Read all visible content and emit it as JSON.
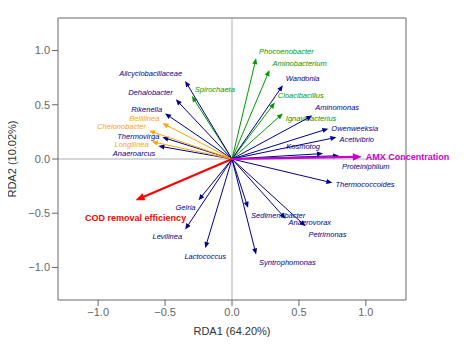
{
  "chart_data": {
    "type": "biplot",
    "xlabel": "RDA1 (64.20%)",
    "ylabel": "RDA2 (10.02%)",
    "xlim": [
      -1.3,
      1.3
    ],
    "ylim": [
      -1.3,
      1.3
    ],
    "xticks": [
      {
        "value": -1.0,
        "label": "−1.0"
      },
      {
        "value": -0.5,
        "label": "−0.5"
      },
      {
        "value": 0.0,
        "label": "0.0"
      },
      0.5,
      {
        "value": 1.0,
        "label": "1.0"
      }
    ],
    "yticks": [
      {
        "value": -1.0,
        "label": "−1.0"
      },
      {
        "value": -0.5,
        "label": "−0.5"
      },
      {
        "value": 0.0,
        "label": "0.0"
      },
      0.5,
      {
        "value": 1.0,
        "label": "1.0"
      }
    ],
    "env_arrows": [
      {
        "name": "AMX Concentration",
        "x": 0.97,
        "y": 0.02,
        "color": "#CC00CC"
      },
      {
        "name": "COD removal efficiency",
        "x": -0.72,
        "y": -0.38,
        "color": "#FF0000"
      }
    ],
    "species_arrows": [
      {
        "name": "Phocoenobacter",
        "x": 0.18,
        "y": 0.93,
        "color": "#009900"
      },
      {
        "name": "Aminobacterium",
        "x": 0.28,
        "y": 0.82,
        "color": "#009900"
      },
      {
        "name": "Spirochaeta",
        "x": -0.3,
        "y": 0.58,
        "color": "#009900"
      },
      {
        "name": "Cloacibacillus",
        "x": 0.32,
        "y": 0.52,
        "color": "#009900"
      },
      {
        "name": "Ignavibacterius",
        "x": 0.38,
        "y": 0.42,
        "color": "#009900"
      },
      {
        "name": "Wandonia",
        "x": 0.38,
        "y": 0.68,
        "color": "#00008B"
      },
      {
        "name": "Alicyclobacillaceae",
        "x": -0.35,
        "y": 0.72,
        "color": "#00008B"
      },
      {
        "name": "Dehalobacter",
        "x": -0.42,
        "y": 0.55,
        "color": "#00008B"
      },
      {
        "name": "Rikenella",
        "x": -0.5,
        "y": 0.42,
        "color": "#00008B"
      },
      {
        "name": "Thermovirga",
        "x": -0.52,
        "y": 0.2,
        "color": "#00008B"
      },
      {
        "name": "Anaeroarcus",
        "x": -0.55,
        "y": 0.12,
        "color": "#00008B"
      },
      {
        "name": "Aminomonas",
        "x": 0.6,
        "y": 0.4,
        "color": "#00008B"
      },
      {
        "name": "Owenweeksia",
        "x": 0.72,
        "y": 0.28,
        "color": "#00008B"
      },
      {
        "name": "Acetivibrio",
        "x": 0.78,
        "y": 0.2,
        "color": "#00008B"
      },
      {
        "name": "Kosmotog",
        "x": 0.68,
        "y": 0.05,
        "color": "#00008B"
      },
      {
        "name": "Proteiniphilum",
        "x": 0.8,
        "y": 0.03,
        "color": "#00008B"
      },
      {
        "name": "Thermococcoides",
        "x": 0.75,
        "y": -0.22,
        "color": "#00008B"
      },
      {
        "name": "Gelria",
        "x": -0.25,
        "y": -0.38,
        "color": "#00008B"
      },
      {
        "name": "Sedimentibacter",
        "x": 0.12,
        "y": -0.45,
        "color": "#00008B"
      },
      {
        "name": "Anaerovorax",
        "x": 0.4,
        "y": -0.55,
        "color": "#00008B"
      },
      {
        "name": "Petrimonas",
        "x": 0.55,
        "y": -0.62,
        "color": "#00008B"
      },
      {
        "name": "Levilinea",
        "x": -0.35,
        "y": -0.65,
        "color": "#00008B"
      },
      {
        "name": "Lactococcus",
        "x": -0.2,
        "y": -0.82,
        "color": "#00008B"
      },
      {
        "name": "Syntrophomonas",
        "x": 0.18,
        "y": -0.88,
        "color": "#00008B"
      },
      {
        "name": "Bellilinea",
        "x": -0.52,
        "y": 0.33,
        "color": "#FFA500"
      },
      {
        "name": "Chelonobacter",
        "x": -0.62,
        "y": 0.26,
        "color": "#FFA500"
      },
      {
        "name": "Longilinea",
        "x": -0.6,
        "y": 0.16,
        "color": "#FFA500"
      }
    ]
  }
}
